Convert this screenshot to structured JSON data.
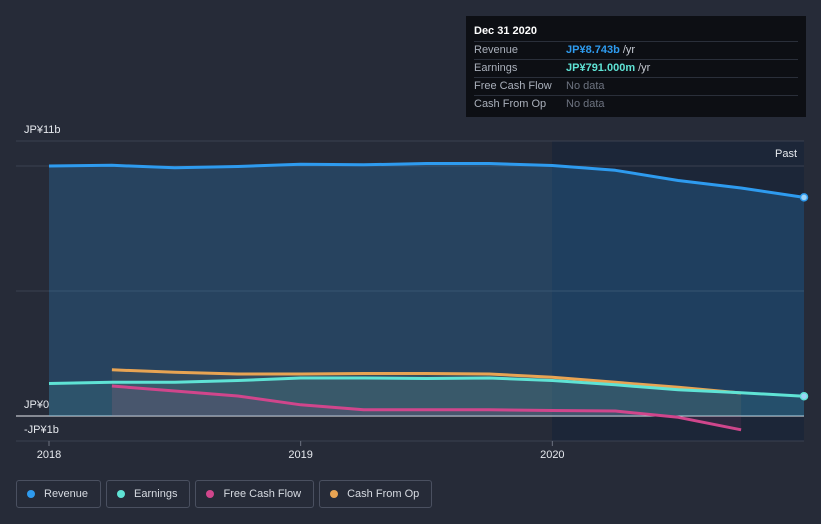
{
  "chart_data": {
    "type": "area",
    "title": "",
    "y_axis_label_top": "JP¥11b",
    "y_axis_label_zero": "JP¥0",
    "y_axis_label_bottom": "-JP¥1b",
    "ylim": [
      -1,
      11
    ],
    "x_ticks": [
      "2018",
      "2019",
      "2020"
    ],
    "past_label": "Past",
    "series": [
      {
        "name": "Revenue",
        "color": "#2e9bef",
        "x": [
          2018.0,
          2018.25,
          2018.5,
          2018.75,
          2019.0,
          2019.25,
          2019.5,
          2019.75,
          2020.0,
          2020.25,
          2020.5,
          2020.75,
          2021.0
        ],
        "values": [
          10.0,
          10.03,
          9.93,
          9.98,
          10.07,
          10.05,
          10.1,
          10.1,
          10.02,
          9.83,
          9.42,
          9.12,
          8.743
        ]
      },
      {
        "name": "Earnings",
        "color": "#5fe3d5",
        "x": [
          2018.0,
          2018.25,
          2018.5,
          2018.75,
          2019.0,
          2019.25,
          2019.5,
          2019.75,
          2020.0,
          2020.25,
          2020.5,
          2020.75,
          2021.0
        ],
        "values": [
          1.3,
          1.35,
          1.35,
          1.42,
          1.52,
          1.52,
          1.5,
          1.52,
          1.42,
          1.25,
          1.05,
          0.93,
          0.791
        ]
      },
      {
        "name": "Free Cash Flow",
        "color": "#d0468c",
        "x": [
          2018.25,
          2018.5,
          2018.75,
          2019.0,
          2019.25,
          2019.5,
          2019.75,
          2020.0,
          2020.25,
          2020.5,
          2020.75
        ],
        "values": [
          1.2,
          1.0,
          0.8,
          0.45,
          0.25,
          0.25,
          0.25,
          0.22,
          0.2,
          -0.05,
          -0.55
        ]
      },
      {
        "name": "Cash From Op",
        "color": "#e8a453",
        "x": [
          2018.25,
          2018.5,
          2018.75,
          2019.0,
          2019.25,
          2019.5,
          2019.75,
          2020.0,
          2020.25,
          2020.5,
          2020.75
        ],
        "values": [
          1.85,
          1.75,
          1.68,
          1.68,
          1.7,
          1.7,
          1.68,
          1.55,
          1.35,
          1.15,
          0.92
        ]
      }
    ]
  },
  "tooltip": {
    "date": "Dec 31 2020",
    "rows": [
      {
        "label": "Revenue",
        "value": "JP¥8.743b",
        "unit": "/yr"
      },
      {
        "label": "Earnings",
        "value": "JP¥791.000m",
        "unit": "/yr"
      },
      {
        "label": "Free Cash Flow",
        "value": "No data",
        "unit": ""
      },
      {
        "label": "Cash From Op",
        "value": "No data",
        "unit": ""
      }
    ]
  },
  "legend": [
    {
      "label": "Revenue",
      "color": "#2e9bef"
    },
    {
      "label": "Earnings",
      "color": "#5fe3d5"
    },
    {
      "label": "Free Cash Flow",
      "color": "#d0468c"
    },
    {
      "label": "Cash From Op",
      "color": "#e8a453"
    }
  ]
}
